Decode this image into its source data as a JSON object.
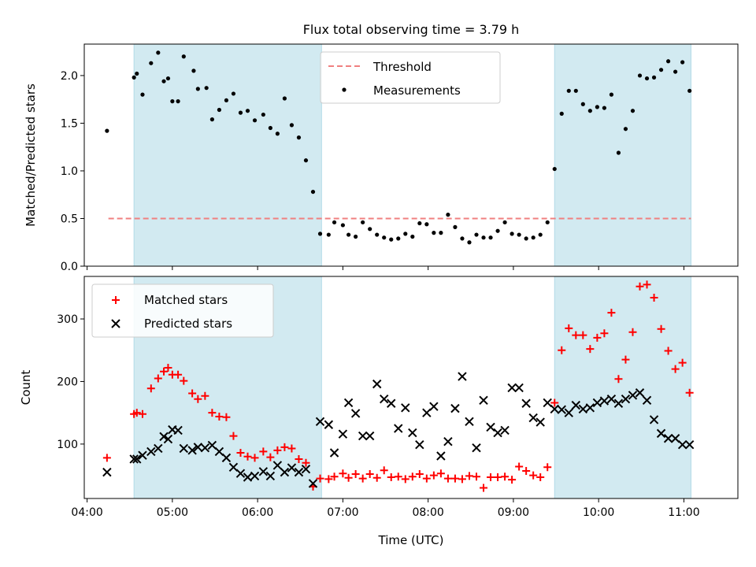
{
  "title": "Flux total observing time = 3.79 h",
  "colors": {
    "span": "#add8e6",
    "threshold": "#f08080",
    "measurements": "#000000",
    "matched": "#ff0000",
    "predicted": "#000000"
  },
  "chart_data": [
    {
      "type": "scatter",
      "name": "ratio-panel",
      "ylabel": "Matched/Predicted stars",
      "xlabel": "",
      "ylim": [
        0,
        2.33
      ],
      "yticks": [
        "0.0",
        "0.5",
        "1.0",
        "1.5",
        "2.0"
      ],
      "legend": {
        "placement": "top-center",
        "entries": [
          "Threshold",
          "Measurements"
        ]
      },
      "threshold": {
        "name": "Threshold",
        "y": 0.5,
        "x_start": "04:15",
        "x_end": "11:05",
        "style": "dashed"
      },
      "shaded_spans": [
        [
          "04:33",
          "06:45"
        ],
        [
          "09:29",
          "11:05"
        ]
      ],
      "series": [
        {
          "name": "Measurements",
          "marker": "dot",
          "x": [
            "04:14",
            "04:33",
            "04:35",
            "04:39",
            "04:45",
            "04:50",
            "04:54",
            "04:57",
            "05:00",
            "05:04",
            "05:08",
            "05:15",
            "05:18",
            "05:24",
            "05:28",
            "05:33",
            "05:38",
            "05:43",
            "05:48",
            "05:53",
            "05:58",
            "06:04",
            "06:09",
            "06:14",
            "06:19",
            "06:24",
            "06:29",
            "06:34",
            "06:39",
            "06:44",
            "06:50",
            "06:54",
            "07:00",
            "07:04",
            "07:09",
            "07:14",
            "07:19",
            "07:24",
            "07:29",
            "07:34",
            "07:39",
            "07:44",
            "07:49",
            "07:54",
            "07:59",
            "08:04",
            "08:09",
            "08:14",
            "08:19",
            "08:24",
            "08:29",
            "08:34",
            "08:39",
            "08:44",
            "08:49",
            "08:54",
            "08:59",
            "09:04",
            "09:09",
            "09:14",
            "09:19",
            "09:24",
            "09:29",
            "09:34",
            "09:39",
            "09:44",
            "09:49",
            "09:54",
            "09:59",
            "10:04",
            "10:09",
            "10:14",
            "10:19",
            "10:24",
            "10:29",
            "10:34",
            "10:39",
            "10:44",
            "10:49",
            "10:54",
            "10:59",
            "11:04"
          ],
          "y": [
            1.42,
            1.98,
            2.02,
            1.8,
            2.13,
            2.24,
            1.94,
            1.97,
            1.73,
            1.73,
            2.2,
            2.05,
            1.86,
            1.87,
            1.54,
            1.64,
            1.74,
            1.81,
            1.61,
            1.63,
            1.53,
            1.59,
            1.45,
            1.39,
            1.76,
            1.48,
            1.35,
            1.11,
            0.78,
            0.34,
            0.33,
            0.46,
            0.43,
            0.33,
            0.31,
            0.46,
            0.39,
            0.33,
            0.3,
            0.28,
            0.29,
            0.34,
            0.31,
            0.45,
            0.44,
            0.35,
            0.35,
            0.54,
            0.41,
            0.29,
            0.25,
            0.33,
            0.3,
            0.3,
            0.37,
            0.46,
            0.34,
            0.33,
            0.29,
            0.3,
            0.33,
            0.46,
            1.02,
            1.6,
            1.84,
            1.84,
            1.7,
            1.63,
            1.67,
            1.66,
            1.8,
            1.19,
            1.44,
            1.63,
            2.0,
            1.97,
            1.98,
            2.06,
            2.15,
            2.04,
            2.14,
            1.84
          ]
        }
      ]
    },
    {
      "type": "scatter",
      "name": "count-panel",
      "ylabel": "Count",
      "xlabel": "Time (UTC)",
      "ylim": [
        13,
        368
      ],
      "xlim": [
        "03:58",
        "11:38"
      ],
      "yticks": [
        "100",
        "200",
        "300"
      ],
      "xticks": [
        "04:00",
        "05:00",
        "06:00",
        "07:00",
        "08:00",
        "09:00",
        "10:00",
        "11:00"
      ],
      "legend": {
        "placement": "top-left",
        "entries": [
          "Matched stars",
          "Predicted stars"
        ]
      },
      "shaded_spans": [
        [
          "04:33",
          "06:45"
        ],
        [
          "09:29",
          "11:05"
        ]
      ],
      "series": [
        {
          "name": "Matched stars",
          "marker": "plus",
          "x": [
            "04:14",
            "04:33",
            "04:35",
            "04:39",
            "04:45",
            "04:50",
            "04:54",
            "04:57",
            "05:00",
            "05:04",
            "05:08",
            "05:14",
            "05:18",
            "05:23",
            "05:28",
            "05:33",
            "05:38",
            "05:43",
            "05:48",
            "05:53",
            "05:58",
            "06:04",
            "06:09",
            "06:14",
            "06:19",
            "06:24",
            "06:29",
            "06:34",
            "06:39",
            "06:44",
            "06:50",
            "06:54",
            "07:00",
            "07:04",
            "07:09",
            "07:14",
            "07:19",
            "07:24",
            "07:29",
            "07:34",
            "07:39",
            "07:44",
            "07:49",
            "07:54",
            "07:59",
            "08:04",
            "08:09",
            "08:14",
            "08:19",
            "08:24",
            "08:29",
            "08:34",
            "08:39",
            "08:44",
            "08:49",
            "08:54",
            "08:59",
            "09:04",
            "09:09",
            "09:14",
            "09:19",
            "09:24",
            "09:29",
            "09:34",
            "09:39",
            "09:44",
            "09:49",
            "09:54",
            "09:59",
            "10:04",
            "10:09",
            "10:14",
            "10:19",
            "10:24",
            "10:29",
            "10:34",
            "10:39",
            "10:44",
            "10:49",
            "10:54",
            "10:59",
            "11:04"
          ],
          "y": [
            78,
            148,
            150,
            148,
            189,
            205,
            216,
            222,
            211,
            211,
            201,
            181,
            172,
            177,
            150,
            144,
            143,
            113,
            86,
            80,
            78,
            88,
            79,
            90,
            95,
            93,
            76,
            70,
            32,
            45,
            44,
            48,
            53,
            46,
            52,
            45,
            52,
            46,
            58,
            47,
            48,
            44,
            48,
            52,
            45,
            50,
            53,
            45,
            45,
            44,
            49,
            48,
            30,
            47,
            47,
            48,
            43,
            64,
            57,
            50,
            47,
            63,
            166,
            250,
            285,
            274,
            274,
            252,
            270,
            277,
            310,
            204,
            235,
            279,
            352,
            355,
            334,
            284,
            249,
            220,
            230,
            182
          ]
        },
        {
          "name": "Predicted stars",
          "marker": "x",
          "x": [
            "04:14",
            "04:33",
            "04:35",
            "04:39",
            "04:45",
            "04:50",
            "04:54",
            "04:57",
            "05:00",
            "05:04",
            "05:08",
            "05:14",
            "05:18",
            "05:23",
            "05:28",
            "05:33",
            "05:38",
            "05:43",
            "05:48",
            "05:53",
            "05:58",
            "06:04",
            "06:09",
            "06:14",
            "06:19",
            "06:24",
            "06:29",
            "06:34",
            "06:39",
            "06:44",
            "06:50",
            "06:54",
            "07:00",
            "07:04",
            "07:09",
            "07:14",
            "07:19",
            "07:24",
            "07:29",
            "07:34",
            "07:39",
            "07:44",
            "07:49",
            "07:54",
            "07:59",
            "08:04",
            "08:09",
            "08:14",
            "08:19",
            "08:24",
            "08:29",
            "08:34",
            "08:39",
            "08:44",
            "08:49",
            "08:54",
            "08:59",
            "09:04",
            "09:09",
            "09:14",
            "09:19",
            "09:24",
            "09:29",
            "09:34",
            "09:39",
            "09:44",
            "09:49",
            "09:54",
            "09:59",
            "10:04",
            "10:09",
            "10:14",
            "10:19",
            "10:24",
            "10:29",
            "10:34",
            "10:39",
            "10:44",
            "10:49",
            "10:54",
            "10:59",
            "11:04"
          ],
          "y": [
            55,
            76,
            76,
            82,
            88,
            93,
            112,
            108,
            123,
            122,
            93,
            90,
            95,
            94,
            98,
            88,
            78,
            63,
            53,
            47,
            49,
            56,
            49,
            66,
            55,
            62,
            55,
            60,
            37,
            136,
            131,
            86,
            116,
            166,
            149,
            113,
            113,
            196,
            172,
            165,
            125,
            158,
            118,
            99,
            150,
            160,
            81,
            104,
            157,
            208,
            136,
            94,
            170,
            127,
            118,
            122,
            190,
            190,
            165,
            142,
            135,
            166,
            156,
            155,
            150,
            162,
            156,
            158,
            166,
            169,
            172,
            165,
            172,
            178,
            182,
            170,
            139,
            117,
            109,
            109,
            99,
            99
          ]
        }
      ]
    }
  ]
}
